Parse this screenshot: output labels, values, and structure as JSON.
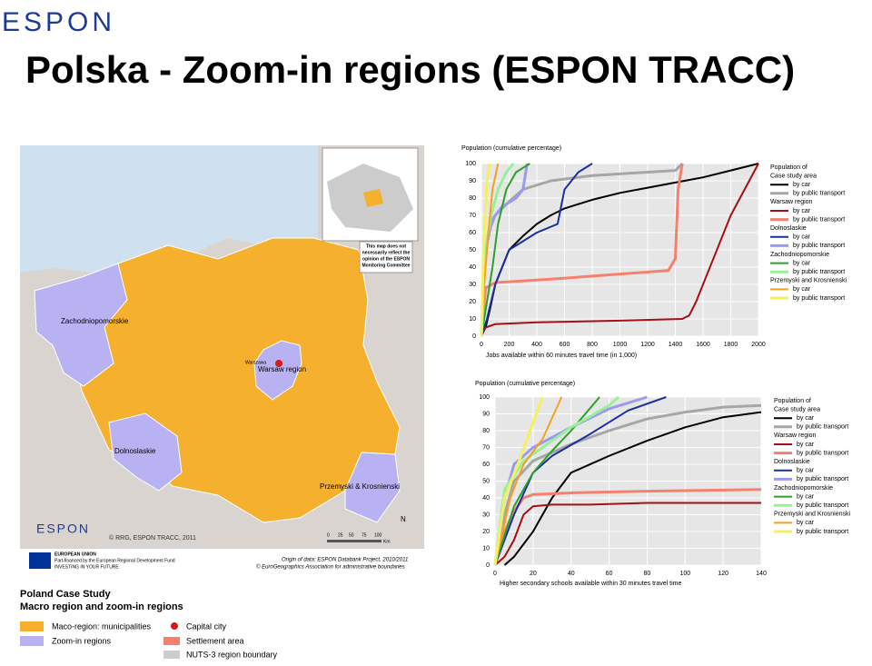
{
  "header": {
    "logo": "ESPON",
    "title": "Polska - Zoom-in regions (ESPON TRACC)"
  },
  "map": {
    "regions": [
      "Zachodniopomorskie",
      "Warsaw region",
      "Dolnoslaskie",
      "Przemyski & Krosnienski"
    ],
    "capital": "Warszawa",
    "disclaimer": [
      "This map does not",
      "necessarily reflect the",
      "opinion of the ESPON",
      "Monitoring Committee"
    ],
    "copyright": "© RRG, ESPON TRACC, 2011",
    "logo": "ESPON",
    "scale": [
      "0",
      "25",
      "50",
      "75",
      "100",
      "Km"
    ],
    "north": "N",
    "eu": [
      "EUROPEAN UNION",
      "Part-financed by the European Regional Development Fund",
      "INVESTING IN YOUR FUTURE"
    ],
    "source": [
      "Origin of data: ESPON Databank Project, 2010/2011",
      "© EuroGeographics Association for administrative boundaries"
    ]
  },
  "legend": {
    "title": "Poland Case Study",
    "subtitle": "Macro region and zoom-in regions",
    "items": [
      "Maco-region: municipalities",
      "Zoom-in regions",
      "Capital city",
      "Settlement area",
      "NUTS-3 region boundary"
    ]
  },
  "chart_data": [
    {
      "type": "line",
      "title": "Population (cumulative percentage)",
      "x_label": "Jobs available within 60 minutes travel time (in 1,000)",
      "legend_title": "Population of",
      "xlim": [
        0,
        2000
      ],
      "xticks": [
        0,
        200,
        400,
        600,
        800,
        1000,
        1200,
        1400,
        1600,
        1800,
        2000
      ],
      "ylim": [
        0,
        100
      ],
      "yticks": [
        0,
        10,
        20,
        30,
        40,
        50,
        60,
        70,
        80,
        90,
        100
      ],
      "grid": true,
      "groups": [
        {
          "name": "Case study area",
          "series": [
            {
              "name": "by car",
              "color": "#000000",
              "x": [
                30,
                60,
                100,
                150,
                200,
                300,
                400,
                500,
                600,
                800,
                1000,
                1200,
                1400,
                1600,
                1800,
                2000
              ],
              "values": [
                5,
                15,
                30,
                40,
                50,
                58,
                65,
                70,
                74,
                79,
                83,
                86,
                89,
                92,
                96,
                100
              ]
            },
            {
              "name": "by public transport",
              "color": "#a6a6a6",
              "x": [
                0,
                20,
                50,
                100,
                200,
                300,
                500,
                800,
                1000,
                1400,
                1450
              ],
              "values": [
                0,
                40,
                60,
                70,
                78,
                85,
                90,
                93,
                94,
                96,
                100
              ]
            }
          ]
        },
        {
          "name": "Warsaw region",
          "series": [
            {
              "name": "by car",
              "color": "#a50f15",
              "x": [
                0,
                30,
                100,
                400,
                1000,
                1450,
                1500,
                1550,
                1600,
                1700,
                1800,
                1900,
                2000
              ],
              "values": [
                0,
                5,
                7,
                8,
                9,
                10,
                12,
                20,
                30,
                50,
                70,
                85,
                100
              ]
            },
            {
              "name": "by public transport",
              "color": "#f4806e",
              "x": [
                0,
                30,
                100,
                500,
                1000,
                1350,
                1400,
                1420,
                1450
              ],
              "values": [
                0,
                28,
                31,
                33,
                36,
                38,
                45,
                85,
                100
              ]
            }
          ]
        },
        {
          "name": "Dolnoslaskie",
          "series": [
            {
              "name": "by car",
              "color": "#1c2f9e",
              "x": [
                0,
                40,
                100,
                200,
                400,
                550,
                600,
                700,
                800
              ],
              "values": [
                0,
                10,
                30,
                50,
                60,
                65,
                85,
                95,
                100
              ]
            },
            {
              "name": "by public transport",
              "color": "#9a9af0",
              "x": [
                0,
                30,
                80,
                150,
                250,
                300,
                330
              ],
              "values": [
                0,
                50,
                68,
                75,
                80,
                85,
                100
              ]
            }
          ]
        },
        {
          "name": "Zachodniopomorskie",
          "series": [
            {
              "name": "by car",
              "color": "#2ca02c",
              "x": [
                0,
                40,
                80,
                120,
                180,
                250,
                350
              ],
              "values": [
                0,
                20,
                40,
                65,
                85,
                95,
                100
              ]
            },
            {
              "name": "by public transport",
              "color": "#98f098",
              "x": [
                0,
                30,
                70,
                120,
                180,
                230
              ],
              "values": [
                0,
                50,
                70,
                85,
                95,
                100
              ]
            }
          ]
        },
        {
          "name": "Przemyski and Krosnienski",
          "series": [
            {
              "name": "by car",
              "color": "#f5a020",
              "x": [
                0,
                20,
                50,
                80,
                120
              ],
              "values": [
                0,
                30,
                60,
                85,
                100
              ]
            },
            {
              "name": "by public transport",
              "color": "#f5f060",
              "x": [
                0,
                15,
                40,
                60
              ],
              "values": [
                0,
                50,
                90,
                100
              ]
            }
          ]
        }
      ]
    },
    {
      "type": "line",
      "title": "Population (cumulative percentage)",
      "x_label": "Higher secondary schools available within 30 minutes travel time",
      "legend_title": "Population of",
      "xlim": [
        0,
        140
      ],
      "xticks": [
        0,
        20,
        40,
        60,
        80,
        100,
        120,
        140
      ],
      "ylim": [
        0,
        100
      ],
      "yticks": [
        0,
        10,
        20,
        30,
        40,
        50,
        60,
        70,
        80,
        90,
        100
      ],
      "grid": true,
      "groups": [
        {
          "name": "Case study area",
          "series": [
            {
              "name": "by car",
              "color": "#000000",
              "x": [
                5,
                10,
                20,
                30,
                40,
                60,
                80,
                100,
                120,
                140
              ],
              "values": [
                0,
                5,
                20,
                40,
                55,
                65,
                74,
                82,
                88,
                91
              ]
            },
            {
              "name": "by public transport",
              "color": "#a6a6a6",
              "x": [
                0,
                5,
                10,
                20,
                40,
                60,
                80,
                100,
                120,
                140
              ],
              "values": [
                0,
                30,
                50,
                62,
                72,
                80,
                87,
                91,
                94,
                95
              ]
            }
          ]
        },
        {
          "name": "Warsaw region",
          "series": [
            {
              "name": "by car",
              "color": "#a50f15",
              "x": [
                0,
                5,
                10,
                15,
                20,
                30,
                50,
                80,
                140
              ],
              "values": [
                0,
                5,
                15,
                30,
                35,
                36,
                36,
                37,
                37
              ]
            },
            {
              "name": "by public transport",
              "color": "#f4806e",
              "x": [
                0,
                5,
                10,
                15,
                20,
                40,
                80,
                140
              ],
              "values": [
                0,
                20,
                32,
                40,
                42,
                43,
                44,
                45
              ]
            }
          ]
        },
        {
          "name": "Dolnoslaskie",
          "series": [
            {
              "name": "by car",
              "color": "#1c2f9e",
              "x": [
                0,
                10,
                20,
                30,
                50,
                70,
                90
              ],
              "values": [
                0,
                30,
                55,
                65,
                78,
                92,
                100
              ]
            },
            {
              "name": "by public transport",
              "color": "#9a9af0",
              "x": [
                0,
                5,
                10,
                20,
                40,
                60,
                80
              ],
              "values": [
                0,
                40,
                60,
                70,
                82,
                93,
                100
              ]
            }
          ]
        },
        {
          "name": "Zachodniopomorskie",
          "series": [
            {
              "name": "by car",
              "color": "#2ca02c",
              "x": [
                0,
                10,
                20,
                30,
                40,
                55
              ],
              "values": [
                0,
                35,
                55,
                68,
                80,
                100
              ]
            },
            {
              "name": "by public transport",
              "color": "#98f098",
              "x": [
                0,
                5,
                15,
                25,
                40,
                60,
                65
              ],
              "values": [
                0,
                45,
                62,
                70,
                82,
                95,
                100
              ]
            }
          ]
        },
        {
          "name": "Przemyski and Krosnienski",
          "series": [
            {
              "name": "by car",
              "color": "#f5a020",
              "x": [
                0,
                8,
                15,
                25,
                35
              ],
              "values": [
                0,
                40,
                60,
                75,
                100
              ]
            },
            {
              "name": "by public transport",
              "color": "#f5f060",
              "x": [
                0,
                5,
                12,
                20,
                25
              ],
              "values": [
                0,
                40,
                60,
                85,
                100
              ]
            }
          ]
        }
      ]
    }
  ]
}
